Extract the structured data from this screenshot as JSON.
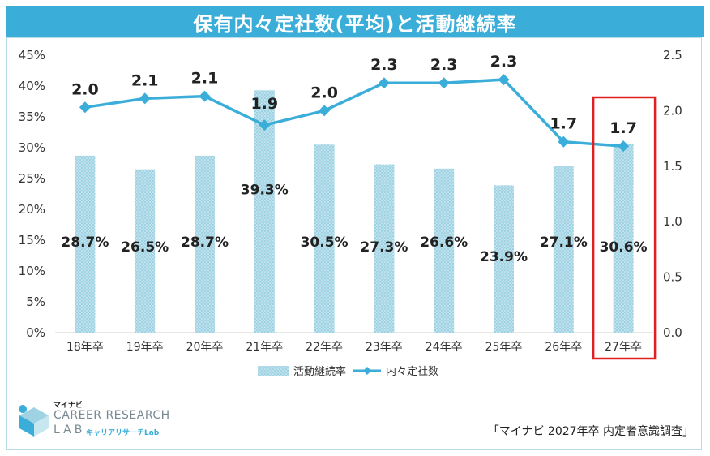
{
  "title": "保有内々定社数(平均)と活動継続率",
  "source": "「マイナビ 2027年卒 内定者意識調査」",
  "logo": {
    "brand": "マイナビ",
    "line1": "CAREER RESEARCH",
    "line2": "LAB",
    "sub": "キャリアリサーチLab"
  },
  "colors": {
    "title_bg": "#3aaed8",
    "bar": "#9fd3e3",
    "line": "#3aaed8",
    "highlight": "#e02020"
  },
  "chart_data": {
    "type": "bar+line",
    "categories": [
      "18年卒",
      "19年卒",
      "20年卒",
      "21年卒",
      "22年卒",
      "23年卒",
      "24年卒",
      "25年卒",
      "26年卒",
      "27年卒"
    ],
    "series": [
      {
        "name": "活動継続率",
        "type": "bar",
        "axis": "left",
        "values": [
          28.7,
          26.5,
          28.7,
          39.3,
          30.5,
          27.3,
          26.6,
          23.9,
          27.1,
          30.6
        ],
        "labels": [
          "28.7%",
          "26.5%",
          "28.7%",
          "39.3%",
          "30.5%",
          "27.3%",
          "26.6%",
          "23.9%",
          "27.1%",
          "30.6%"
        ]
      },
      {
        "name": "内々定社数",
        "type": "line",
        "axis": "right",
        "values": [
          2.03,
          2.11,
          2.13,
          1.87,
          2.0,
          2.25,
          2.25,
          2.28,
          1.72,
          1.68
        ],
        "labels": [
          "2.0",
          "2.1",
          "2.1",
          "1.9",
          "2.0",
          "2.3",
          "2.3",
          "2.3",
          "1.7",
          "1.7"
        ]
      }
    ],
    "y_left": {
      "min": 0,
      "max": 45,
      "ticks": [
        "0%",
        "5%",
        "10%",
        "15%",
        "20%",
        "25%",
        "30%",
        "35%",
        "40%",
        "45%"
      ]
    },
    "y_right": {
      "min": 0,
      "max": 2.5,
      "ticks": [
        "0.0",
        "0.5",
        "1.0",
        "1.5",
        "2.0",
        "2.5"
      ]
    },
    "highlight_category": "27年卒",
    "legend_position": "bottom-center",
    "grid": false
  }
}
